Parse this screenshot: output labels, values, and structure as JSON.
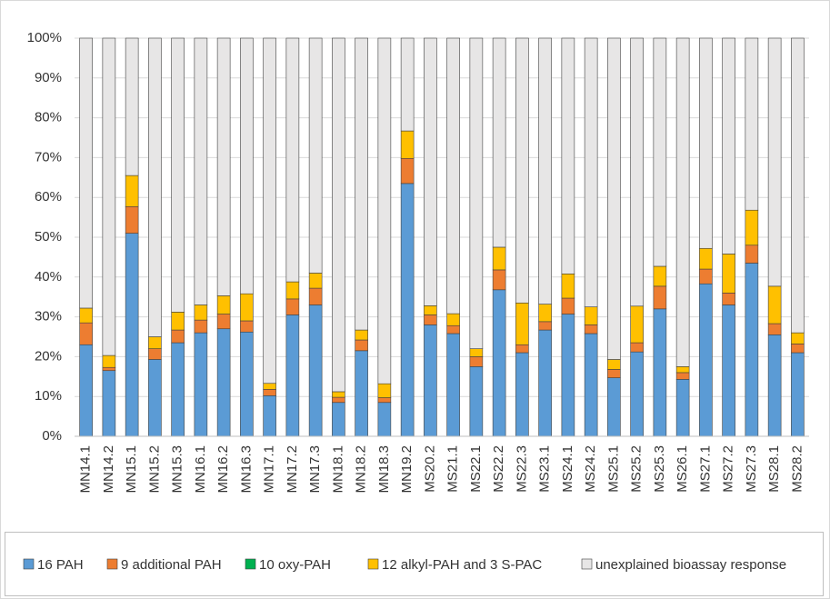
{
  "chart_data": {
    "type": "stacked_bar",
    "categories": [
      "MN14.1",
      "MN14.2",
      "MN15.1",
      "MN15.2",
      "MN15.3",
      "MN16.1",
      "MN16.2",
      "MN16.3",
      "MN17.1",
      "MN17.2",
      "MN17.3",
      "MN18.1",
      "MN18.2",
      "MN18.3",
      "MN19.2",
      "MS20.2",
      "MS21.1",
      "MS22.1",
      "MS22.2",
      "MS22.3",
      "MS23.1",
      "MS24.1",
      "MS24.2",
      "MS25.1",
      "MS25.2",
      "MS25.3",
      "MS26.1",
      "MS27.1",
      "MS27.2",
      "MS27.3",
      "MS28.1",
      "MS28.2"
    ],
    "series": [
      {
        "name": "16 PAH",
        "color": "#5b9bd5",
        "values": [
          23,
          16.5,
          51,
          19.3,
          23.5,
          26,
          27,
          26.2,
          10.2,
          30.5,
          33,
          8.5,
          21.5,
          8.5,
          63.5,
          28,
          25.8,
          17.5,
          36.8,
          21,
          26.7,
          30.7,
          25.8,
          14.7,
          21.2,
          32,
          14.3,
          38.3,
          33,
          43.5,
          25.5,
          21
        ]
      },
      {
        "name": "9 additional PAH",
        "color": "#ed7d31",
        "values": [
          5.5,
          0.8,
          6.7,
          2.7,
          3.2,
          3.2,
          3.7,
          2.8,
          1.6,
          4,
          4.2,
          1.3,
          2.7,
          1.2,
          6.3,
          2.5,
          2,
          2.5,
          5,
          2,
          2.1,
          4,
          2.2,
          2.1,
          2.3,
          5.7,
          1.7,
          3.7,
          3,
          4.5,
          2.8,
          2.2
        ]
      },
      {
        "name": "10 oxy-PAH",
        "color": "#00b050",
        "values": [
          0,
          0,
          0,
          0,
          0,
          0,
          0,
          0,
          0,
          0,
          0,
          0,
          0,
          0,
          0,
          0,
          0,
          0,
          0,
          0,
          0,
          0,
          0,
          0,
          0,
          0,
          0,
          0,
          0,
          0,
          0,
          0
        ]
      },
      {
        "name": "12 alkyl-PAH and 3 S-PAC",
        "color": "#ffc000",
        "values": [
          3.7,
          3,
          7.8,
          3,
          4.5,
          3.8,
          4.6,
          6.8,
          1.5,
          4.3,
          3.8,
          1.4,
          2.5,
          3.5,
          6.9,
          2.3,
          3,
          2,
          5.7,
          10.5,
          4.4,
          6.1,
          4.5,
          2.5,
          9.2,
          5,
          1.5,
          5.2,
          9.8,
          8.8,
          9.4,
          2.8
        ]
      },
      {
        "name": "unexplained bioassay response",
        "color": "#e7e6e6",
        "values": [
          67.8,
          79.7,
          34.5,
          75,
          68.8,
          67,
          64.7,
          64.2,
          86.7,
          61.2,
          59,
          88.8,
          73.3,
          86.8,
          23.3,
          67.2,
          69.2,
          78,
          52.5,
          66.5,
          66.8,
          59.2,
          67.5,
          80.7,
          67.3,
          57.3,
          82.5,
          52.8,
          54.2,
          43.2,
          62.3,
          74
        ]
      }
    ],
    "ylim": [
      0,
      100
    ],
    "yticks": [
      {
        "value": 0,
        "label": "0%"
      },
      {
        "value": 10,
        "label": "10%"
      },
      {
        "value": 20,
        "label": "20%"
      },
      {
        "value": 30,
        "label": "30%"
      },
      {
        "value": 40,
        "label": "40%"
      },
      {
        "value": 50,
        "label": "50%"
      },
      {
        "value": 60,
        "label": "60%"
      },
      {
        "value": 70,
        "label": "70%"
      },
      {
        "value": 80,
        "label": "80%"
      },
      {
        "value": 90,
        "label": "90%"
      },
      {
        "value": 100,
        "label": "100%"
      }
    ],
    "grid": true,
    "legend": "bottom"
  }
}
